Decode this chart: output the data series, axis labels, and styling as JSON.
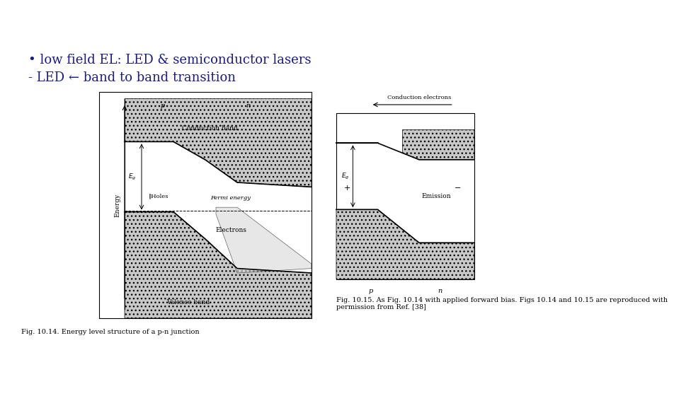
{
  "bg_color": "#ffffff",
  "bullet_text": "• low field EL: LED & semiconductor lasers",
  "sub_text": "- LED ← band to band transition",
  "bullet_fontsize": 13,
  "sub_fontsize": 13,
  "text_color": "#1a1a8c",
  "fig1_caption": "Fig. 10.14. Energy level structure of a p-n junction",
  "fig2_caption": "Fig. 10.15. As Fig. 10.14 with applied forward bias. Figs 10.14 and 10.15 are reproduced with\npermission from Ref. [38]",
  "caption_fontsize": 7,
  "caption_color": "#000000",
  "hatch_color": "#bbbbbb",
  "line_color": "#000000"
}
